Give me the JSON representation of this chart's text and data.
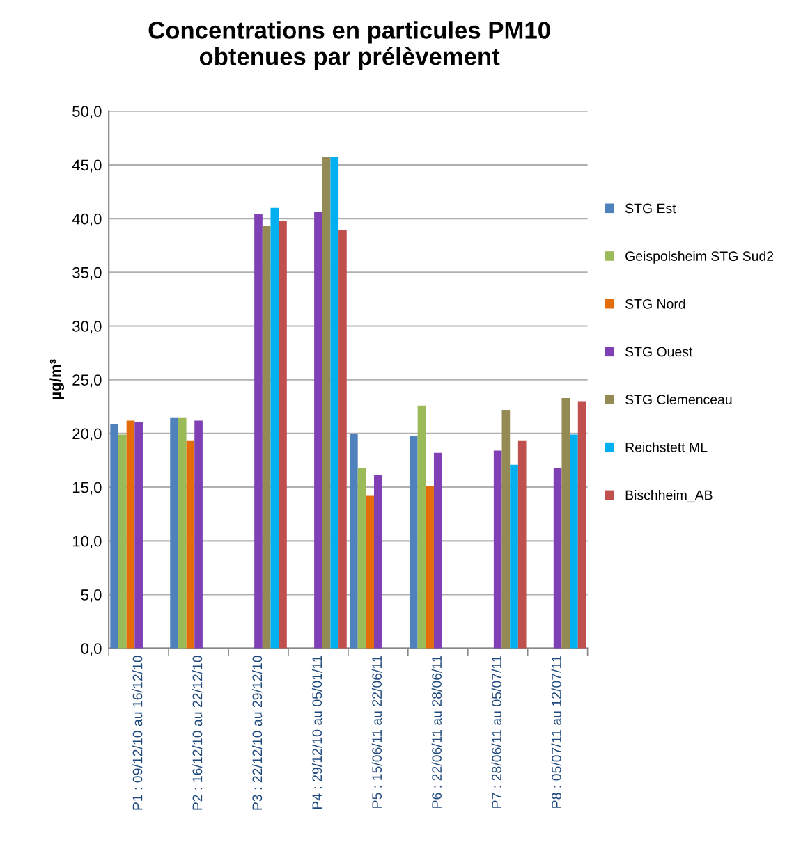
{
  "chart_data": {
    "type": "bar",
    "title": "Concentrations en particules PM10\nobtenues par prélèvement",
    "ylabel": "µg/m³",
    "categories": [
      "P1 : 09/12/10 au 16/12/10",
      "P2 : 16/12/10 au 22/12/10",
      "P3 : 22/12/10 au 29/12/10",
      "P4 : 29/12/10 au 05/01/11",
      "P5 : 15/06/11 au 22/06/11",
      "P6 : 22/06/11 au 28/06/11",
      "P7 : 28/06/11 au 05/07/11",
      "P8 : 05/07/11 au 12/07/11"
    ],
    "series": [
      {
        "name": "STG Est",
        "color": "#4f81bd",
        "values": [
          20.9,
          21.5,
          null,
          null,
          20.0,
          19.8,
          null,
          null
        ]
      },
      {
        "name": "Geispolsheim STG Sud2",
        "color": "#9bbb59",
        "values": [
          19.9,
          21.5,
          null,
          null,
          16.8,
          22.6,
          null,
          null
        ]
      },
      {
        "name": "STG Nord",
        "color": "#e46c0a",
        "values": [
          21.2,
          19.3,
          null,
          null,
          14.2,
          15.1,
          null,
          null
        ]
      },
      {
        "name": "STG Ouest",
        "color": "#7f3fb5",
        "values": [
          21.1,
          21.2,
          40.4,
          40.6,
          16.1,
          18.2,
          18.4,
          16.8
        ]
      },
      {
        "name": "STG Clemenceau",
        "color": "#948a54",
        "values": [
          null,
          null,
          39.3,
          45.7,
          null,
          null,
          22.2,
          23.3
        ]
      },
      {
        "name": "Reichstett ML",
        "color": "#00b0f0",
        "values": [
          null,
          null,
          41.0,
          45.7,
          null,
          null,
          17.1,
          19.9
        ]
      },
      {
        "name": "Bischheim_AB",
        "color": "#c0504d",
        "values": [
          null,
          null,
          39.8,
          38.9,
          null,
          null,
          19.3,
          23.0
        ]
      }
    ],
    "ylim": [
      0,
      50
    ],
    "yticks": [
      {
        "value": 0,
        "label": "0,0"
      },
      {
        "value": 5,
        "label": "5,0"
      },
      {
        "value": 10,
        "label": "10,0"
      },
      {
        "value": 15,
        "label": "15,0"
      },
      {
        "value": 20,
        "label": "20,0"
      },
      {
        "value": 25,
        "label": "25,0"
      },
      {
        "value": 30,
        "label": "30,0"
      },
      {
        "value": 35,
        "label": "35,0"
      },
      {
        "value": 40,
        "label": "40,0"
      },
      {
        "value": 45,
        "label": "45,0"
      },
      {
        "value": 50,
        "label": "50,0"
      }
    ],
    "grid": "y",
    "legend": "right"
  }
}
